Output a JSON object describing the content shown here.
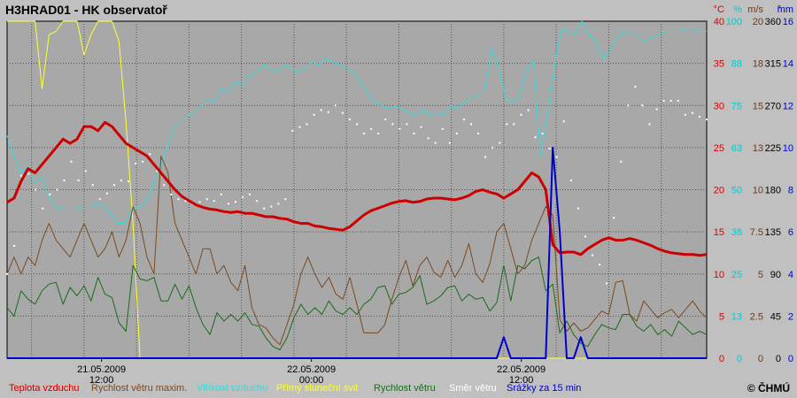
{
  "title": "H3HRAD01 - HK observatoř",
  "copyright": "© ČHMÚ",
  "chart_data": {
    "type": "line",
    "x_labels": [
      {
        "pos": 0.135,
        "lines": [
          "21.05.2009",
          "12:00"
        ]
      },
      {
        "pos": 0.435,
        "lines": [
          "22.05.2009",
          "00:00"
        ]
      },
      {
        "pos": 0.735,
        "lines": [
          "22.05.2009",
          "12:00"
        ]
      }
    ],
    "grid": true,
    "right_axes": [
      {
        "unit": "°C",
        "color": "#d40000",
        "ticks": [
          "40",
          "35",
          "30",
          "25",
          "20",
          "15",
          "10",
          "5",
          "0"
        ]
      },
      {
        "unit": "%",
        "color": "#00cccc",
        "ticks": [
          "100",
          "88",
          "75",
          "63",
          "50",
          "38",
          "25",
          "13",
          "0"
        ]
      },
      {
        "unit": "m/s",
        "color": "#6b3a1a",
        "ticks": [
          "20",
          "18",
          "15",
          "13",
          "10",
          "7.5",
          "5",
          "2.5",
          "0"
        ]
      },
      {
        "unit": "°",
        "color": "#000000",
        "ticks": [
          "360",
          "315",
          "270",
          "225",
          "180",
          "135",
          "90",
          "45",
          "0"
        ]
      },
      {
        "unit": "mm",
        "color": "#0000cc",
        "ticks": [
          "16",
          "14",
          "12",
          "10",
          "8",
          "6",
          "4",
          "2",
          "0"
        ]
      }
    ],
    "series": [
      {
        "name": "Teplota vzduchu",
        "color": "#cc0000",
        "axis": 0,
        "max": 40,
        "kind": "line",
        "width": 3,
        "values": [
          18.5,
          19,
          21,
          22.5,
          22,
          23,
          24,
          25,
          26,
          25.5,
          26,
          27.5,
          27.5,
          27,
          28,
          27.5,
          26.5,
          25.5,
          25,
          24.5,
          24,
          23,
          22,
          21,
          20,
          19.2,
          18.7,
          18.2,
          17.9,
          17.7,
          17.6,
          17.4,
          17.3,
          17.4,
          17.2,
          17.2,
          17,
          16.8,
          16.8,
          16.6,
          16.5,
          16.2,
          16,
          16,
          15.7,
          15.6,
          15.4,
          15.3,
          15.2,
          15.6,
          16.3,
          17,
          17.5,
          17.8,
          18.1,
          18.4,
          18.6,
          18.7,
          18.5,
          18.6,
          18.9,
          19,
          19,
          18.9,
          18.8,
          19,
          19.3,
          19.8,
          20,
          19.7,
          19.5,
          19,
          19.5,
          20,
          21,
          22,
          21.5,
          20,
          13.5,
          12.5,
          12.6,
          12.6,
          12.3,
          13,
          13.5,
          14,
          14.3,
          14,
          14,
          14.2,
          14,
          13.7,
          13.4,
          13,
          12.7,
          12.5,
          12.4,
          12.3,
          12.3,
          12.2,
          12.3
        ]
      },
      {
        "name": "Rychlost větru maxim.",
        "color": "#7a4a1f",
        "axis": 2,
        "max": 20,
        "kind": "line",
        "width": 1,
        "values": [
          5,
          6,
          5,
          6,
          5.5,
          7,
          8,
          7,
          6.5,
          6,
          7,
          8,
          7,
          6,
          6.5,
          7.5,
          6,
          7,
          9,
          8,
          6,
          5,
          12,
          11,
          8,
          7,
          6,
          5,
          6.5,
          6.5,
          5,
          5.5,
          4.5,
          4,
          5.5,
          3,
          2,
          1.8,
          1.2,
          0.8,
          2,
          3.2,
          5,
          6,
          5,
          4.2,
          4.8,
          3.8,
          3.5,
          4.8,
          3.2,
          1.5,
          1.5,
          1.5,
          2,
          3.5,
          4.8,
          5.8,
          4.3,
          5.5,
          6,
          5.1,
          4.8,
          5.8,
          4.8,
          5.5,
          6.8,
          5,
          4.5,
          5.6,
          7.5,
          8,
          6.5,
          5,
          5.5,
          7,
          8,
          9,
          8.5,
          2.3,
          1.6,
          2.1,
          1.6,
          1.8,
          2.3,
          2.8,
          2.6,
          4.5,
          4.6,
          2.6,
          2.2,
          3.4,
          2.9,
          2.4,
          2.7,
          2.9,
          2.4,
          2.9,
          3.4,
          2.8,
          2.4
        ]
      },
      {
        "name": "Vlhkost vzduchu",
        "color": "#33dddd",
        "axis": 1,
        "max": 100,
        "kind": "line",
        "width": 1,
        "values": [
          66,
          60,
          55,
          57,
          52,
          54,
          48,
          45,
          44,
          44,
          44,
          45,
          45,
          46,
          45,
          43,
          40,
          40,
          44,
          45,
          46,
          51,
          56,
          62,
          68,
          70,
          72,
          73,
          75,
          77,
          76,
          80,
          79,
          82,
          81,
          84,
          85,
          87,
          86,
          85,
          87,
          86,
          85,
          86,
          88,
          87,
          89,
          88,
          87,
          86,
          85,
          82,
          79,
          76,
          75,
          74,
          75,
          74,
          73,
          72,
          74,
          72,
          73,
          72,
          75,
          74,
          76,
          77,
          78,
          80,
          92,
          86,
          77,
          76,
          78,
          86,
          88,
          60,
          72,
          86,
          98,
          97,
          96,
          100,
          96,
          94,
          89,
          91,
          95,
          97,
          96,
          96,
          94,
          95,
          96,
          97,
          97,
          97,
          98,
          98,
          97,
          97
        ]
      },
      {
        "name": "Přímý sluneční svit",
        "color": "#ffff33",
        "axis": 1,
        "max": 100,
        "kind": "line",
        "width": 1,
        "values": [
          100,
          100,
          100,
          100,
          100,
          80,
          96,
          97,
          100,
          100,
          100,
          90,
          96,
          100,
          100,
          100,
          94,
          70,
          40,
          0,
          0,
          0,
          0,
          0,
          0,
          0,
          0,
          0,
          0,
          0,
          0,
          0,
          0,
          0,
          0,
          0,
          0,
          0,
          0,
          0,
          0,
          0,
          0,
          0,
          0,
          0,
          0,
          0,
          0,
          0,
          0,
          0,
          0,
          0,
          0,
          0,
          0,
          0,
          0,
          0,
          0,
          0,
          0,
          0,
          0,
          0,
          0,
          0,
          0,
          0,
          0,
          0,
          0,
          0,
          0,
          0,
          0,
          0,
          0,
          0,
          0,
          0,
          0,
          0,
          0,
          0,
          0,
          0,
          0,
          0,
          0,
          0,
          0,
          0,
          0,
          0,
          0,
          0,
          0,
          0,
          0
        ]
      },
      {
        "name": "Rychlost větru",
        "color": "#1a6b1a",
        "axis": 2,
        "max": 20,
        "kind": "line",
        "width": 1,
        "values": [
          3,
          2.5,
          4,
          3.5,
          3.2,
          4,
          4.4,
          4.5,
          3.2,
          4.2,
          3.7,
          4.3,
          3.4,
          4.8,
          3.8,
          3.6,
          2.1,
          1.6,
          5.5,
          4.7,
          4.6,
          4.8,
          3.4,
          3.4,
          4.4,
          3.5,
          4.3,
          3,
          2,
          1.4,
          2.7,
          2.2,
          2.6,
          2.2,
          2.7,
          2,
          1.9,
          1.2,
          0.7,
          0.5,
          1.2,
          2.4,
          3.2,
          2.6,
          3,
          2.6,
          3.4,
          2.8,
          2.6,
          3,
          2.6,
          3.2,
          3.5,
          4.2,
          4.3,
          3.2,
          3.8,
          3.9,
          4.2,
          4.9,
          3.2,
          3.4,
          3.7,
          4.2,
          4.3,
          3.4,
          3.8,
          3.5,
          3.6,
          2.8,
          3.3,
          5.5,
          3.4,
          5.5,
          5.3,
          5.8,
          6,
          4,
          4.4,
          1.5,
          2.2,
          1.4,
          0.9,
          0.7,
          1.4,
          2,
          1.8,
          1.7,
          2.6,
          2.6,
          1.9,
          1.6,
          2,
          1.4,
          1.7,
          1.3,
          2.2,
          1.8,
          1.4,
          1.6,
          1.4
        ]
      },
      {
        "name": "Směr větru",
        "color": "#ffffff",
        "axis": 3,
        "max": 360,
        "kind": "dots",
        "values": [
          90,
          120,
          195,
          197,
          180,
          160,
          175,
          180,
          190,
          210,
          190,
          200,
          185,
          170,
          176,
          185,
          190,
          189,
          208,
          210,
          218,
          200,
          185,
          175,
          170,
          168,
          165,
          167,
          170,
          168,
          175,
          165,
          167,
          172,
          175,
          168,
          160,
          162,
          165,
          170,
          243,
          247,
          250,
          260,
          265,
          263,
          270,
          262,
          255,
          250,
          240,
          245,
          240,
          255,
          250,
          245,
          250,
          240,
          247,
          235,
          230,
          245,
          230,
          240,
          255,
          250,
          240,
          215,
          225,
          230,
          250,
          250,
          260,
          265,
          236,
          240,
          224,
          215,
          253,
          190,
          160,
          130,
          110,
          100,
          80,
          150,
          210,
          270,
          290,
          270,
          250,
          266,
          275,
          275,
          275,
          260,
          262,
          258,
          255
        ]
      },
      {
        "name": "Srážky za 15 min",
        "color": "#0000cc",
        "axis": 4,
        "max": 16,
        "kind": "line",
        "width": 2,
        "values": [
          0,
          0,
          0,
          0,
          0,
          0,
          0,
          0,
          0,
          0,
          0,
          0,
          0,
          0,
          0,
          0,
          0,
          0,
          0,
          0,
          0,
          0,
          0,
          0,
          0,
          0,
          0,
          0,
          0,
          0,
          0,
          0,
          0,
          0,
          0,
          0,
          0,
          0,
          0,
          0,
          0,
          0,
          0,
          0,
          0,
          0,
          0,
          0,
          0,
          0,
          0,
          0,
          0,
          0,
          0,
          0,
          0,
          0,
          0,
          0,
          0,
          0,
          0,
          0,
          0,
          0,
          0,
          0,
          0,
          0,
          0,
          1,
          0,
          0,
          0,
          0,
          0,
          0,
          10,
          6,
          0,
          0,
          1,
          0,
          0,
          0,
          0,
          0,
          0,
          0,
          0,
          0,
          0,
          0,
          0,
          0,
          0,
          0,
          0,
          0,
          0
        ]
      }
    ]
  }
}
